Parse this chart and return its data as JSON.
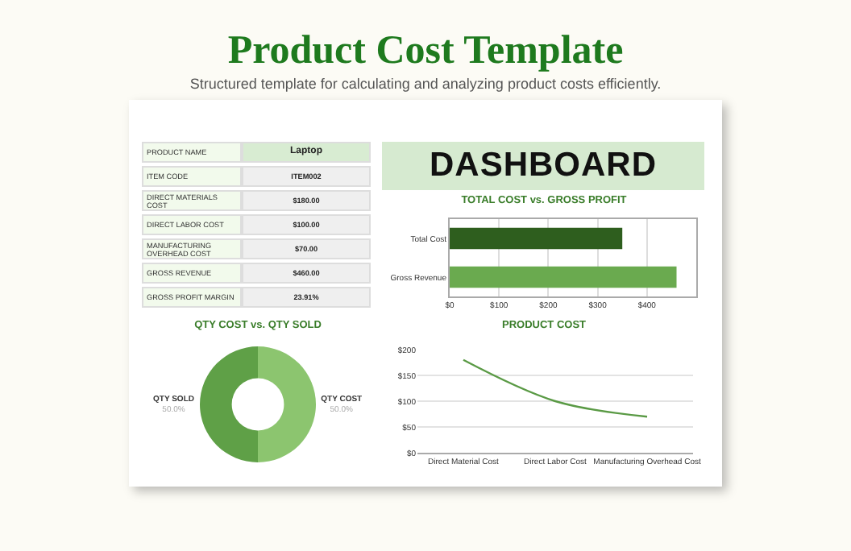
{
  "chart_data": [
    {
      "type": "other",
      "title": "Product Cost Template",
      "subtitle": "Structured template for calculating and analyzing product costs efficiently.",
      "annotations": [
        "PRODUCT NAME",
        "Laptop",
        "ITEM CODE",
        "ITEM002",
        "DIRECT MATERIALS COST",
        "$180.00",
        "DIRECT LABOR COST",
        "$100.00",
        "MANUFACTURING OVERHEAD COST",
        "$70.00",
        "GROSS REVENUE",
        "$460.00",
        "GROSS PROFIT MARGIN",
        "23.91%",
        "DASHBOARD"
      ]
    },
    {
      "type": "bar",
      "title": "TOTAL COST vs. GROSS PROFIT",
      "orientation": "horizontal",
      "categories": [
        "Total Cost",
        "Gross Revenue"
      ],
      "values": [
        350,
        460
      ],
      "colors": [
        "#2e5e1e",
        "#6aaa4f"
      ],
      "xlim": [
        0,
        500
      ],
      "xticks": [
        {
          "value": 0,
          "label": "$0"
        },
        {
          "value": 100,
          "label": "$100"
        },
        {
          "value": 200,
          "label": "$200"
        },
        {
          "value": 300,
          "label": "$300"
        },
        {
          "value": 400,
          "label": "$400"
        }
      ],
      "grid": "x"
    },
    {
      "type": "donut",
      "title": "QTY COST vs. QTY SOLD",
      "categories": [
        "QTY COST",
        "QTY SOLD"
      ],
      "values": [
        50,
        50
      ],
      "colors": [
        "#8cc56f",
        "#5fa047"
      ],
      "value_labels": [
        "50.0%",
        "50.0%"
      ]
    },
    {
      "type": "line",
      "title": "PRODUCT COST",
      "categories": [
        "Direct Material Cost",
        "Direct Labor Cost",
        "Manufacturing Overhead Cost"
      ],
      "values": [
        180,
        100,
        70
      ],
      "color": "#5a9a45",
      "ylim": [
        0,
        200
      ],
      "yticks": [
        {
          "value": 0,
          "label": "$0"
        },
        {
          "value": 50,
          "label": "$50"
        },
        {
          "value": 100,
          "label": "$100"
        },
        {
          "value": 150,
          "label": "$150"
        },
        {
          "value": 200,
          "label": "$200"
        }
      ],
      "grid": "y",
      "marker": "none"
    }
  ]
}
